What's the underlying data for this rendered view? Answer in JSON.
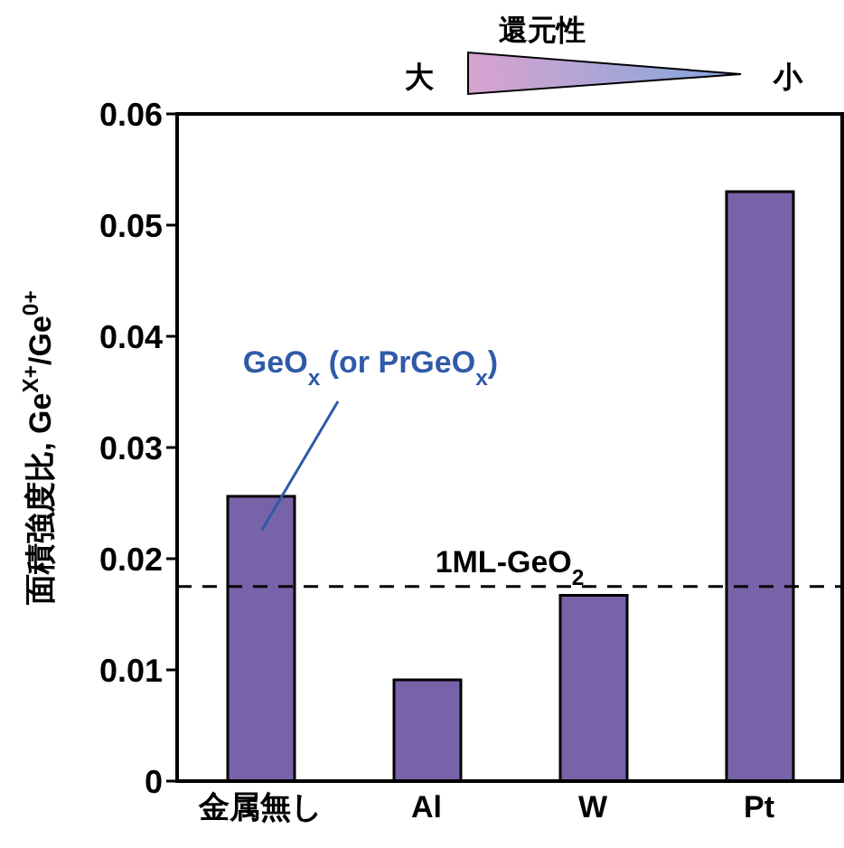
{
  "chart_data": {
    "type": "bar",
    "ylabel": "面積強度比, Ge$^{X+}$/Ge$^{0+}$",
    "categories": [
      "金属無し",
      "Al",
      "W",
      "Pt"
    ],
    "values": [
      0.0256,
      0.0091,
      0.0167,
      0.053
    ],
    "color": "#7862a8",
    "ylim": [
      0,
      0.06
    ],
    "yticks": [
      0,
      0.01,
      0.02,
      0.03,
      0.04,
      0.05,
      0.06
    ],
    "grid": false,
    "legend": false,
    "ref_lines": [
      {
        "axis": "y",
        "value": 0.0175,
        "label": "1ML-GeO$_{2}$",
        "color": "#000000",
        "line_style": "dashed"
      }
    ],
    "annotations": [
      "GeO$_{x}$ (or PrGeO$_{x}$)",
      "還元性",
      "大",
      "小"
    ]
  }
}
